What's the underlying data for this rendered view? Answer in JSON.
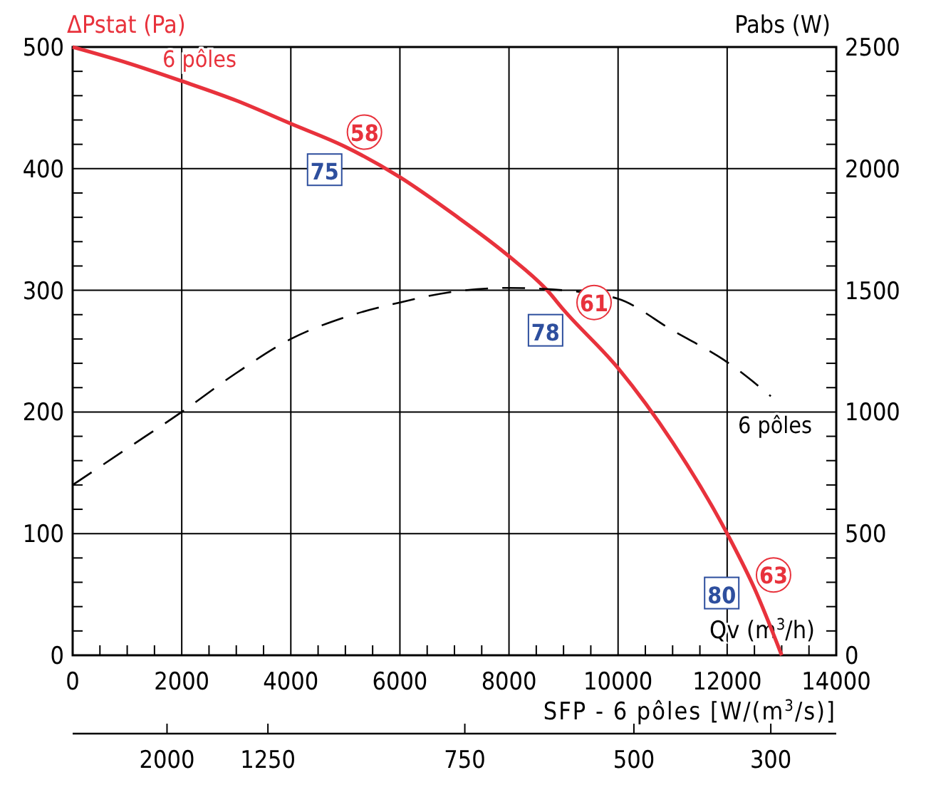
{
  "chart_data": {
    "type": "line",
    "ylabel": "ΔPstat (Pa)",
    "y2label": "Pabs (W)",
    "xlabel": "Qv (m$^{3}$/h)",
    "xlim": [
      0,
      14000
    ],
    "xticks": [
      0,
      {
        "value": 500,
        "label": null
      },
      {
        "value": 1000,
        "label": null
      },
      {
        "value": 1500,
        "label": null
      },
      2000,
      {
        "value": 2500,
        "label": null
      },
      {
        "value": 3000,
        "label": null
      },
      {
        "value": 3500,
        "label": null
      },
      4000,
      {
        "value": 4500,
        "label": null
      },
      {
        "value": 5000,
        "label": null
      },
      {
        "value": 5500,
        "label": null
      },
      6000,
      {
        "value": 6500,
        "label": null
      },
      {
        "value": 7000,
        "label": null
      },
      {
        "value": 7500,
        "label": null
      },
      8000,
      {
        "value": 8500,
        "label": null
      },
      {
        "value": 9000,
        "label": null
      },
      {
        "value": 9500,
        "label": null
      },
      10000,
      {
        "value": 10500,
        "label": null
      },
      {
        "value": 11000,
        "label": null
      },
      {
        "value": 11500,
        "label": null
      },
      12000,
      {
        "value": 12500,
        "label": null
      },
      {
        "value": 13000,
        "label": null
      },
      {
        "value": 13500,
        "label": null
      },
      14000
    ],
    "ylim": [
      0,
      500
    ],
    "yticks": [
      0,
      {
        "value": 20,
        "label": null
      },
      {
        "value": 40,
        "label": null
      },
      {
        "value": 60,
        "label": null
      },
      {
        "value": 80,
        "label": null
      },
      100,
      {
        "value": 120,
        "label": null
      },
      {
        "value": 140,
        "label": null
      },
      {
        "value": 160,
        "label": null
      },
      {
        "value": 180,
        "label": null
      },
      200,
      {
        "value": 220,
        "label": null
      },
      {
        "value": 240,
        "label": null
      },
      {
        "value": 260,
        "label": null
      },
      {
        "value": 280,
        "label": null
      },
      300,
      {
        "value": 320,
        "label": null
      },
      {
        "value": 340,
        "label": null
      },
      {
        "value": 360,
        "label": null
      },
      {
        "value": 380,
        "label": null
      },
      400,
      {
        "value": 420,
        "label": null
      },
      {
        "value": 440,
        "label": null
      },
      {
        "value": 460,
        "label": null
      },
      {
        "value": 480,
        "label": null
      },
      500
    ],
    "y2lim": [
      0,
      2500
    ],
    "y2ticks": [
      0,
      {
        "value": 100,
        "label": null
      },
      {
        "value": 200,
        "label": null
      },
      {
        "value": 300,
        "label": null
      },
      {
        "value": 400,
        "label": null
      },
      500,
      {
        "value": 600,
        "label": null
      },
      {
        "value": 700,
        "label": null
      },
      {
        "value": 800,
        "label": null
      },
      {
        "value": 900,
        "label": null
      },
      1000,
      {
        "value": 1100,
        "label": null
      },
      {
        "value": 1200,
        "label": null
      },
      {
        "value": 1300,
        "label": null
      },
      {
        "value": 1400,
        "label": null
      },
      1500,
      {
        "value": 1600,
        "label": null
      },
      {
        "value": 1700,
        "label": null
      },
      {
        "value": 1800,
        "label": null
      },
      {
        "value": 1900,
        "label": null
      },
      2000,
      {
        "value": 2100,
        "label": null
      },
      {
        "value": 2200,
        "label": null
      },
      {
        "value": 2300,
        "label": null
      },
      {
        "value": 2400,
        "label": null
      },
      2500
    ],
    "grid": true,
    "series": [
      {
        "name": "6 pôles",
        "color": "#e8323c",
        "line_style": "solid",
        "x": [
          0,
          1000,
          2000,
          3000,
          4000,
          5000,
          6000,
          7000,
          8000,
          8700,
          9000,
          10000,
          11000,
          12000,
          12500,
          13000
        ],
        "values": [
          500,
          487,
          472,
          456,
          437,
          418,
          393,
          362,
          328,
          300,
          284,
          236,
          175,
          100,
          55,
          0
        ]
      },
      {
        "name": "6 pôles",
        "color": "#000000",
        "axis": "y2",
        "line_style": "dashed",
        "x": [
          0,
          1000,
          2000,
          3000,
          4000,
          5000,
          6000,
          7000,
          8000,
          9000,
          10000,
          11000,
          12000,
          12800
        ],
        "values": [
          700,
          850,
          1000,
          1160,
          1300,
          1390,
          1450,
          1495,
          1510,
          1500,
          1465,
          1335,
          1205,
          1065
        ]
      }
    ],
    "annotations": [
      {
        "text": "58",
        "x": 5350,
        "y": 430
      },
      {
        "text": "61",
        "x": 9560,
        "y": 290
      },
      {
        "text": "63",
        "x": 12850,
        "y": 66
      },
      {
        "text": "75",
        "x": 4620,
        "y": 398
      },
      {
        "text": "78",
        "x": 8670,
        "y": 266
      },
      {
        "text": "80",
        "x": 11900,
        "y": 50
      },
      "SFP - 6 pôles [W/(m$^{3}$/s)]",
      "2000",
      "1250",
      "750",
      "500",
      "300"
    ]
  }
}
